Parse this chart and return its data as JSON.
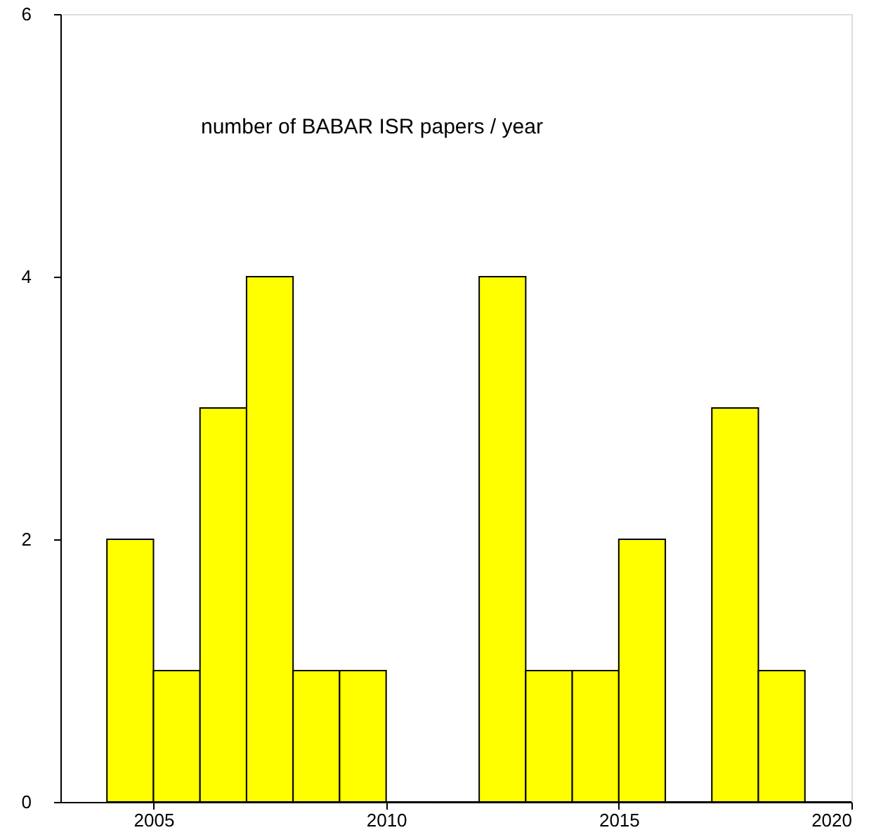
{
  "chart_data": {
    "type": "histogram",
    "title": "number of BABAR ISR papers / year",
    "bins": [
      2004,
      2005,
      2006,
      2007,
      2008,
      2009,
      2010,
      2011,
      2012,
      2013,
      2014,
      2015,
      2016,
      2017,
      2018,
      2019,
      2020
    ],
    "values": [
      2,
      1,
      3,
      4,
      1,
      1,
      0,
      0,
      4,
      1,
      1,
      2,
      0,
      3,
      1,
      0
    ],
    "color": "#ffff00",
    "xlim": [
      2003,
      2020
    ],
    "xticks": [
      2005,
      2010,
      2015,
      2020
    ],
    "ylim": [
      0,
      6
    ],
    "yticks": [
      0,
      2,
      4,
      6
    ],
    "grid": false
  }
}
